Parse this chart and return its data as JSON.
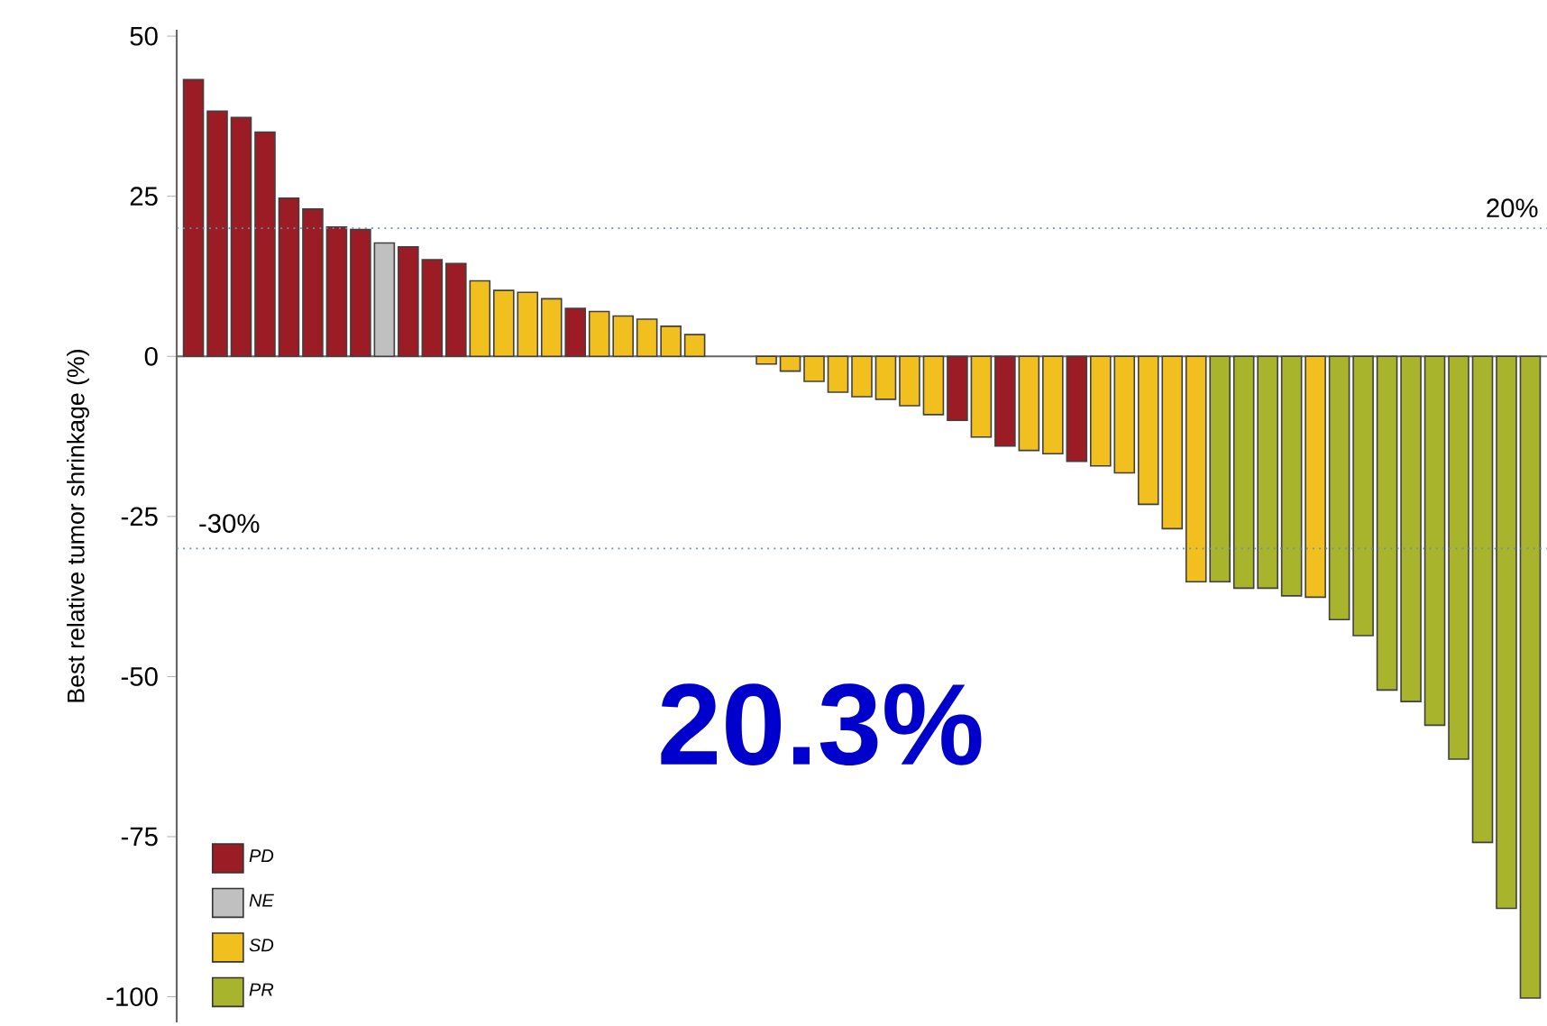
{
  "chart_data": {
    "type": "bar",
    "ylabel": "Best relative tumor shrinkage (%)",
    "categories": [
      null,
      null,
      null,
      null,
      null,
      null,
      null,
      null,
      null,
      null,
      null,
      null,
      null,
      null,
      null,
      null,
      null,
      null,
      null,
      null,
      null,
      null,
      null,
      null,
      null,
      null,
      null,
      null,
      null,
      null,
      null,
      null,
      null,
      null,
      null,
      null,
      null,
      null,
      null,
      null,
      null,
      null,
      null,
      null,
      null,
      null,
      null,
      null,
      null,
      null,
      null,
      null,
      null,
      null,
      null,
      null,
      null
    ],
    "series": [
      {
        "name": "PD",
        "color": "#9b1c24",
        "values": [
          43.2,
          38.3,
          37.3,
          35.0,
          24.7,
          23.0,
          20.2,
          19.8,
          null,
          17.1,
          15.1,
          14.5,
          null,
          null,
          null,
          null,
          7.5,
          null,
          null,
          null,
          null,
          null,
          null,
          null,
          null,
          null,
          null,
          null,
          null,
          null,
          null,
          null,
          -10.0,
          null,
          -14.0,
          null,
          null,
          -16.4,
          null,
          null,
          null,
          null,
          null,
          null,
          null,
          null,
          null,
          null,
          null,
          null,
          null,
          null,
          null,
          null,
          null,
          null,
          null
        ]
      },
      {
        "name": "NE",
        "color": "#c0c0c0",
        "values": [
          null,
          null,
          null,
          null,
          null,
          null,
          null,
          null,
          17.7,
          null,
          null,
          null,
          null,
          null,
          null,
          null,
          null,
          null,
          null,
          null,
          null,
          null,
          null,
          null,
          null,
          null,
          null,
          null,
          null,
          null,
          null,
          null,
          null,
          null,
          null,
          null,
          null,
          null,
          null,
          null,
          null,
          null,
          null,
          null,
          null,
          null,
          null,
          null,
          null,
          null,
          null,
          null,
          null,
          null,
          null,
          null,
          null
        ]
      },
      {
        "name": "SD",
        "color": "#f2c01e",
        "values": [
          null,
          null,
          null,
          null,
          null,
          null,
          null,
          null,
          null,
          null,
          null,
          null,
          11.8,
          10.3,
          10.0,
          9.0,
          null,
          7.0,
          6.3,
          5.8,
          4.7,
          3.4,
          null,
          null,
          -1.2,
          -2.3,
          -3.9,
          -5.6,
          -6.3,
          -6.7,
          -7.7,
          -9.1,
          null,
          -12.6,
          null,
          -14.7,
          -15.2,
          null,
          -17.1,
          -18.2,
          -23.1,
          -26.9,
          -35.2,
          null,
          null,
          null,
          null,
          -37.6,
          null,
          null,
          null,
          null,
          null,
          null,
          null,
          null,
          null
        ]
      },
      {
        "name": "PR",
        "color": "#a8b42c",
        "values": [
          null,
          null,
          null,
          null,
          null,
          null,
          null,
          null,
          null,
          null,
          null,
          null,
          null,
          null,
          null,
          null,
          null,
          null,
          null,
          null,
          null,
          null,
          null,
          null,
          null,
          null,
          null,
          null,
          null,
          null,
          null,
          null,
          null,
          null,
          null,
          null,
          null,
          null,
          null,
          null,
          null,
          null,
          null,
          -35.2,
          -36.2,
          -36.2,
          -37.4,
          null,
          -41.1,
          -43.6,
          -52.1,
          -53.9,
          -57.6,
          -62.9,
          -75.9,
          -86.2,
          -100.2
        ]
      }
    ],
    "ylim": [
      -104,
      51
    ],
    "yticks": [
      50,
      25,
      0,
      -25,
      -50,
      -75,
      -100
    ],
    "ref_lines": [
      {
        "axis": "y",
        "value": 20,
        "label": "20%",
        "color": "#6a8fb0",
        "line_style": "dotted"
      },
      {
        "axis": "y",
        "value": -30,
        "label": "-30%",
        "color": "#6a8fb0",
        "line_style": "dotted"
      }
    ],
    "annotations": [
      "20.3%"
    ],
    "legend": "bottom left"
  }
}
